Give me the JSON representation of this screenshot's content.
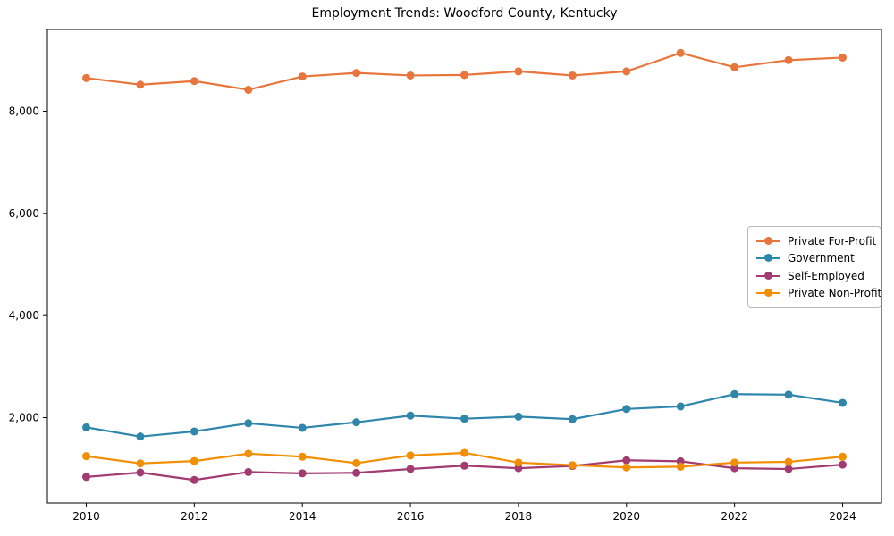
{
  "title": "Employment Trends: Woodford County, Kentucky",
  "chart_data": {
    "type": "line",
    "title": "Employment Trends: Woodford County, Kentucky",
    "xlabel": "",
    "ylabel": "",
    "grid": false,
    "legend_position": "center-right",
    "x": [
      2010,
      2011,
      2012,
      2013,
      2014,
      2015,
      2016,
      2017,
      2018,
      2019,
      2020,
      2021,
      2022,
      2023,
      2024
    ],
    "series": [
      {
        "name": "Private For-Profit",
        "color": "#E8763C",
        "values": [
          8650,
          8520,
          8590,
          8420,
          8680,
          8750,
          8700,
          8710,
          8780,
          8700,
          8780,
          9140,
          8860,
          9000,
          9050
        ]
      },
      {
        "name": "Government",
        "color": "#2E86AB",
        "values": [
          1810,
          1630,
          1730,
          1890,
          1800,
          1910,
          2040,
          1980,
          2020,
          1970,
          2170,
          2220,
          2460,
          2450,
          2290
        ]
      },
      {
        "name": "Self-Employed",
        "color": "#A23B72",
        "values": [
          840,
          925,
          780,
          935,
          910,
          920,
          995,
          1060,
          1010,
          1055,
          1165,
          1145,
          1010,
          995,
          1080
        ]
      },
      {
        "name": "Private Non-Profit",
        "color": "#F18F01",
        "values": [
          1245,
          1105,
          1150,
          1295,
          1235,
          1110,
          1260,
          1310,
          1120,
          1070,
          1025,
          1040,
          1120,
          1135,
          1235
        ]
      }
    ],
    "xlim": [
      2009.28,
      2024.72
    ],
    "ylim": [
      330,
      9600
    ],
    "xticks": [
      2010,
      2012,
      2014,
      2016,
      2018,
      2020,
      2022,
      2024
    ],
    "xtick_labels": [
      "2010",
      "2012",
      "2014",
      "2016",
      "2018",
      "2020",
      "2022",
      "2024"
    ],
    "yticks": [
      2000,
      4000,
      6000,
      8000
    ],
    "ytick_labels": [
      "2,000",
      "4,000",
      "6,000",
      "8,000"
    ],
    "axis_color": "#000000",
    "tick_label_color": "#000000"
  }
}
